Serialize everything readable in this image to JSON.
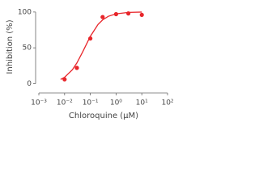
{
  "chart_data": {
    "type": "scatter",
    "x_label": "Chloroquine (μM)",
    "y_label": "Inhibition (%)",
    "log_x": true,
    "color": "#e8262b",
    "xlim": [
      0.001,
      100
    ],
    "ylim": [
      -13,
      110
    ],
    "xticks": [
      {
        "value": 0.001,
        "label": "10⁻³"
      },
      {
        "value": 0.01,
        "label": "10⁻²"
      },
      {
        "value": 0.1,
        "label": "10⁻¹"
      },
      {
        "value": 1,
        "label": "10⁰"
      },
      {
        "value": 10,
        "label": "10¹"
      },
      {
        "value": 100,
        "label": "10²"
      }
    ],
    "yticks": [
      0,
      50,
      100
    ],
    "points": {
      "x": [
        0.01,
        0.03,
        0.1,
        0.3,
        1,
        3,
        10
      ],
      "values": [
        6,
        22,
        63,
        93,
        97,
        98,
        96
      ]
    },
    "fit": {
      "x": [
        0.007,
        0.01,
        0.02,
        0.03,
        0.05,
        0.1,
        0.2,
        0.3,
        0.5,
        1,
        3,
        10
      ],
      "values": [
        5.8,
        8.9,
        19.3,
        28.9,
        44.1,
        66,
        82.7,
        89,
        94,
        97.5,
        99.4,
        99.9
      ]
    }
  }
}
